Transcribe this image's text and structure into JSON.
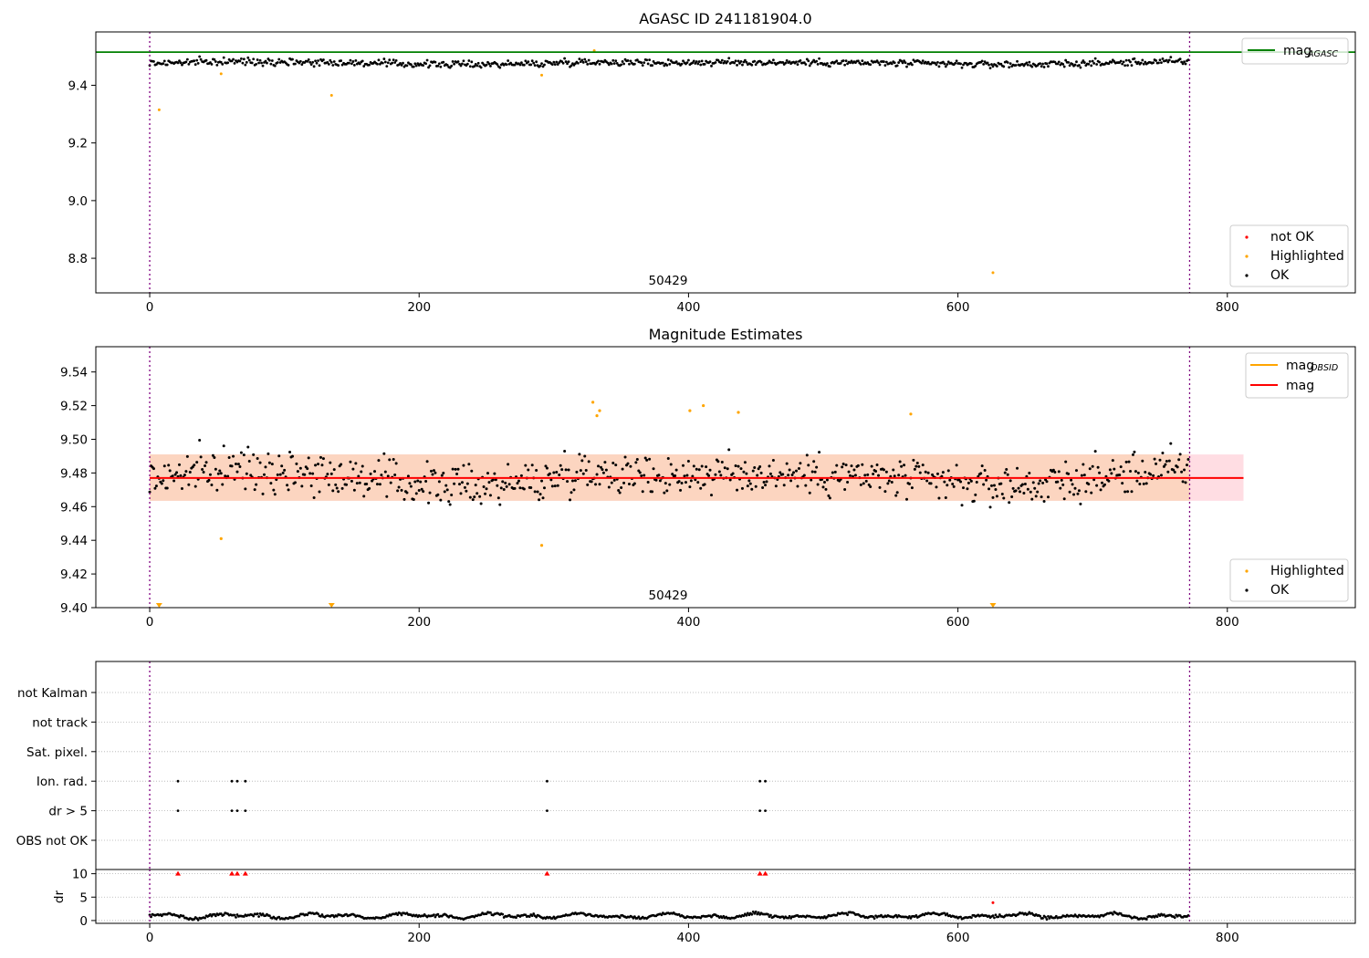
{
  "figure": {
    "background": "#ffffff"
  },
  "chart_data": [
    {
      "type": "scatter",
      "title": "AGASC ID 241181904.0",
      "xlim": [
        -40,
        895
      ],
      "ylim": [
        8.68,
        9.585
      ],
      "xticks": [
        0,
        200,
        400,
        600,
        800
      ],
      "yticks": [
        8.8,
        9.0,
        9.2,
        9.4
      ],
      "ytick_labels": [
        "8.8",
        "9.0",
        "9.2",
        "9.4"
      ],
      "annotation": {
        "text": "50429",
        "x": 386
      },
      "vlines": [
        0,
        772
      ],
      "hline": {
        "name": "mag",
        "subscript": "AGASC",
        "y": 9.515,
        "color": "#008000"
      },
      "legend_lines": [
        {
          "label": "mag",
          "subscript": "AGASC",
          "color": "#008000"
        }
      ],
      "legend_points": [
        {
          "label": "not OK",
          "color": "#ff0000"
        },
        {
          "label": "Highlighted",
          "color": "#ffa500"
        },
        {
          "label": "OK",
          "color": "#000000"
        }
      ],
      "highlighted_points": [
        [
          7,
          9.315
        ],
        [
          53,
          9.44
        ],
        [
          135,
          9.365
        ],
        [
          291,
          9.435
        ],
        [
          330,
          9.52
        ],
        [
          626,
          8.75
        ]
      ],
      "ok_series": {
        "n": 772,
        "center": 9.477,
        "scatter": 0.012
      }
    },
    {
      "type": "scatter",
      "title": "Magnitude Estimates",
      "xlim": [
        -40,
        895
      ],
      "ylim": [
        9.4,
        9.555
      ],
      "xticks": [
        0,
        200,
        400,
        600,
        800
      ],
      "yticks": [
        9.4,
        9.42,
        9.44,
        9.46,
        9.48,
        9.5,
        9.52,
        9.54
      ],
      "ytick_labels": [
        "9.40",
        "9.42",
        "9.44",
        "9.46",
        "9.48",
        "9.50",
        "9.52",
        "9.54"
      ],
      "annotation": {
        "text": "50429",
        "x": 386
      },
      "vlines": [
        0,
        772
      ],
      "mag_line": {
        "name": "mag",
        "y": 9.477,
        "color": "#ff0000",
        "x_range": [
          0,
          812
        ]
      },
      "band_pink": {
        "y_range": [
          9.4635,
          9.491
        ],
        "x_range": [
          0,
          812
        ],
        "color": "#ffdde3"
      },
      "band_orange": {
        "y_range": [
          9.4635,
          9.491
        ],
        "x_range": [
          0,
          772
        ],
        "color": "#fcd5c0"
      },
      "legend_lines": [
        {
          "label": "mag",
          "subscript": "OBSID",
          "color": "#ffa500"
        },
        {
          "label": "mag",
          "subscript": "",
          "color": "#ff0000"
        }
      ],
      "legend_points": [
        {
          "label": "Highlighted",
          "color": "#ffa500"
        },
        {
          "label": "OK",
          "color": "#000000"
        }
      ],
      "highlighted_points": [
        [
          53,
          9.441
        ],
        [
          291,
          9.437
        ],
        [
          329,
          9.522
        ],
        [
          332,
          9.514
        ],
        [
          334,
          9.517
        ],
        [
          401,
          9.517
        ],
        [
          411,
          9.52
        ],
        [
          437,
          9.516
        ],
        [
          565,
          9.515
        ]
      ],
      "clipped_markers_x": [
        7,
        135,
        626
      ],
      "ok_series": {
        "n": 772,
        "center": 9.477,
        "scatter": 0.012
      }
    },
    {
      "type": "scatter",
      "title": "",
      "xlim": [
        -40,
        895
      ],
      "categories": [
        "not Kalman",
        "not track",
        "Sat. pixel.",
        "Ion. rad.",
        "dr > 5",
        "OBS not OK"
      ],
      "vlines": [
        0,
        772
      ],
      "flag_points": {
        "Ion. rad.": [
          21,
          61,
          65,
          71,
          295,
          453,
          457
        ],
        "dr > 5": [
          21,
          61,
          65,
          71,
          295,
          453,
          457
        ]
      }
    },
    {
      "type": "scatter",
      "title": "",
      "ylabel": "dr",
      "xlim": [
        -40,
        895
      ],
      "ylim": [
        -0.6,
        10.9
      ],
      "xticks": [
        0,
        200,
        400,
        600,
        800
      ],
      "yticks": [
        0,
        5,
        10
      ],
      "ytick_labels": [
        "0",
        "5",
        "10"
      ],
      "vlines": [
        0,
        772
      ],
      "clipped_red_x": [
        21,
        61,
        65,
        71,
        295,
        453,
        457
      ],
      "red_point": [
        626,
        3.8
      ],
      "ok_series": {
        "n": 772,
        "mean": 1.0
      }
    }
  ]
}
